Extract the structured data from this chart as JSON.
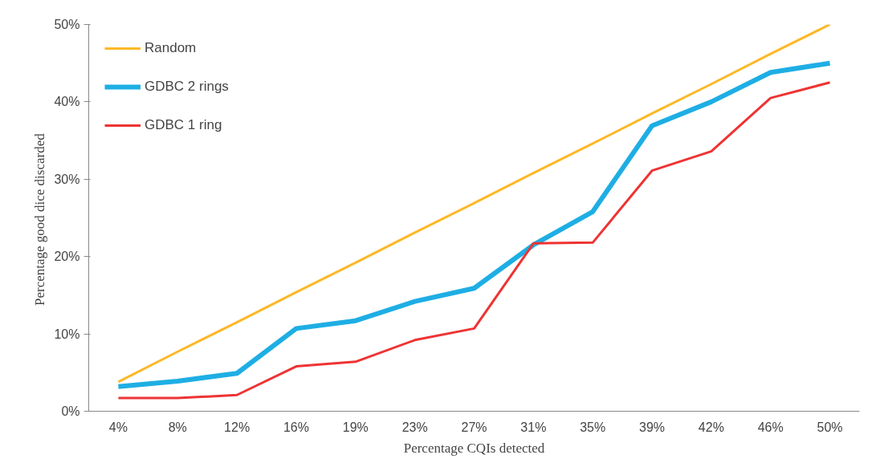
{
  "chart_data": {
    "type": "line",
    "xlabel": "Percentage CQIs detected",
    "ylabel": "Percentage good dice  discarded",
    "categories": [
      "4%",
      "8%",
      "12%",
      "16%",
      "19%",
      "23%",
      "27%",
      "31%",
      "35%",
      "39%",
      "42%",
      "46%",
      "50%"
    ],
    "ylim": [
      0,
      50
    ],
    "yticks": [
      {
        "value": 0,
        "label": "0%"
      },
      {
        "value": 10,
        "label": "10%"
      },
      {
        "value": 20,
        "label": "20%"
      },
      {
        "value": 30,
        "label": "30%"
      },
      {
        "value": 40,
        "label": "40%"
      },
      {
        "value": 50,
        "label": "50%"
      }
    ],
    "grid": false,
    "legend": "top left",
    "marker": "none",
    "line_style": "solid",
    "series": [
      {
        "name": "Random",
        "color": "#fdb827",
        "values": [
          3.8,
          7.7,
          11.5,
          15.4,
          19.2,
          23.1,
          26.9,
          30.8,
          34.6,
          38.5,
          42.3,
          46.2,
          50
        ]
      },
      {
        "name": "GDBC 2 rings",
        "color": "#1eaee4",
        "values": [
          3.2,
          3.9,
          4.9,
          10.7,
          11.7,
          14.2,
          15.9,
          21.5,
          25.8,
          36.9,
          40.0,
          43.8,
          45.0
        ]
      },
      {
        "name": "GDBC 1 ring",
        "color": "#ee3333",
        "values": [
          1.7,
          1.7,
          2.1,
          5.8,
          6.4,
          9.2,
          10.7,
          21.7,
          21.8,
          31.1,
          33.6,
          40.5,
          42.5
        ]
      }
    ]
  }
}
